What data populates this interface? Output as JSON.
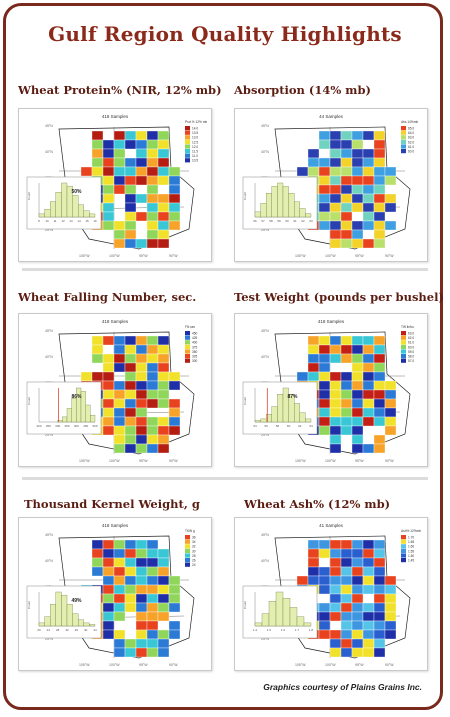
{
  "page": {
    "title": "Gulf Region Quality Highlights",
    "credit": "Graphics courtesy of Plains Grains Inc."
  },
  "panels": [
    {
      "heading": "Wheat Protein% (NIR, 12% mb)",
      "map_title": "418 Samples",
      "percent": "50%",
      "legend_title": "Prot % 12% mb",
      "legend_values": [
        "14.0",
        "13.5",
        "13.0",
        "12.5",
        "12.0",
        "11.5",
        "11.0",
        "10.5"
      ],
      "hist_ticks": [
        "8",
        "10",
        "11",
        "12",
        "13",
        "14",
        "15",
        "16"
      ],
      "palette": "protein",
      "hist_bars": [
        2,
        5,
        10,
        16,
        22,
        20,
        14,
        8,
        4,
        2
      ],
      "percent_line": null
    },
    {
      "heading": "Absorption (14% mb)",
      "map_title": "44 Samples",
      "percent": "",
      "legend_title": "Abs 14%mb",
      "legend_values": [
        "65.0",
        "64.0",
        "63.0",
        "62.0",
        "61.0",
        "60.0"
      ],
      "hist_ticks": [
        "56",
        "57",
        "58",
        "59",
        "60",
        "61",
        "62",
        "63"
      ],
      "palette": "absorption",
      "hist_bars": [
        3,
        8,
        14,
        18,
        20,
        18,
        14,
        9,
        5,
        2
      ],
      "percent_line": null
    },
    {
      "heading": "Wheat Falling Number, sec.",
      "map_title": "418 Samples",
      "percent": "86%",
      "legend_title": "FN sec",
      "legend_values": [
        "450",
        "425",
        "400",
        "375",
        "350",
        "325",
        "300"
      ],
      "hist_ticks": [
        "200",
        "250",
        "300",
        "350",
        "400",
        "450",
        "500"
      ],
      "palette": "falling",
      "hist_bars": [
        0,
        0,
        0,
        0,
        1,
        3,
        8,
        14,
        20,
        18,
        10,
        4
      ],
      "percent_line": 0.35
    },
    {
      "heading": "Test Weight (pounds per bushel)",
      "map_title": "418 Samples",
      "percent": "87%",
      "legend_title": "TW lb/bu",
      "legend_values": [
        "63.0",
        "62.0",
        "61.0",
        "60.0",
        "59.0",
        "58.0",
        "57.0"
      ],
      "hist_ticks": [
        "54",
        "56",
        "58",
        "60",
        "62",
        "64"
      ],
      "palette": "testweight",
      "hist_bars": [
        1,
        2,
        5,
        10,
        18,
        22,
        18,
        12,
        6,
        2
      ],
      "percent_line": 0.22
    },
    {
      "heading": "Thousand Kernel Weight, g",
      "map_title": "418 Samples",
      "percent": "49%",
      "legend_title": "TKW g",
      "legend_values": [
        "36",
        "34",
        "32",
        "30",
        "28",
        "26",
        "24"
      ],
      "hist_ticks": [
        "20",
        "24",
        "28",
        "32",
        "36",
        "40",
        "44"
      ],
      "palette": "tkw",
      "hist_bars": [
        2,
        6,
        14,
        22,
        20,
        14,
        8,
        4,
        2,
        1
      ],
      "percent_line": null
    },
    {
      "heading": "Wheat Ash% (12% mb)",
      "map_title": "41 Samples",
      "percent": "",
      "legend_title": "Ash% 12%mb",
      "legend_values": [
        "1.70",
        "1.65",
        "1.60",
        "1.55",
        "1.50",
        "1.45"
      ],
      "hist_ticks": [
        "1.4",
        "1.5",
        "1.6",
        "1.7",
        "1.8"
      ],
      "palette": "ash",
      "hist_bars": [
        2,
        8,
        16,
        22,
        18,
        12,
        6,
        2
      ],
      "percent_line": null
    }
  ],
  "colors": {
    "brand": "#7a2a1c",
    "heading": "#5b1d12",
    "title": "#8b2a1a",
    "hist_fill": "#e3eeb0",
    "hist_line": "#e24a2a"
  }
}
